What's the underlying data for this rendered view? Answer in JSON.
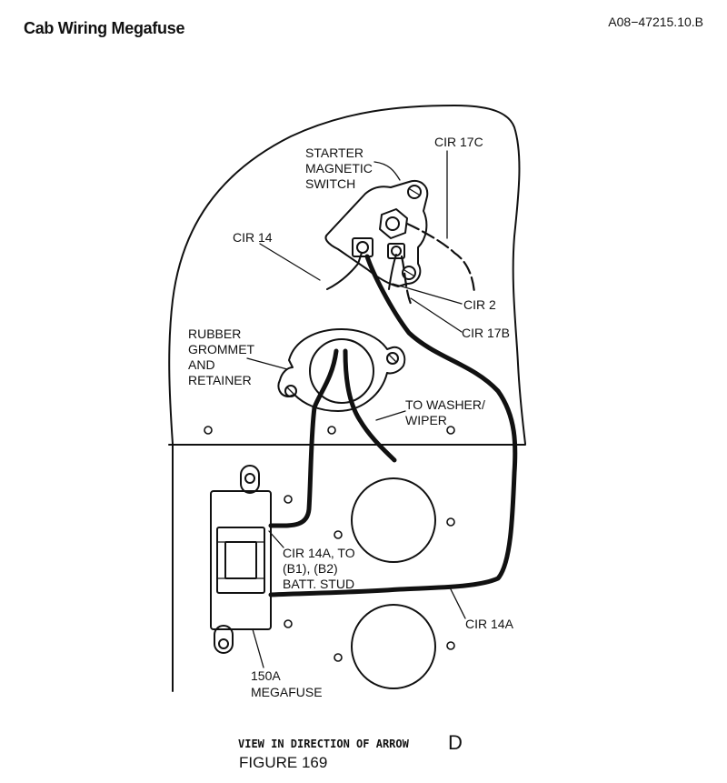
{
  "header": {
    "title": "Cab Wiring Megafuse",
    "doc_ref": "A08−47215.10.B"
  },
  "labels": {
    "starter_line1": "STARTER",
    "starter_line2": "MAGNETIC",
    "starter_line3": "SWITCH",
    "cir17c": "CIR 17C",
    "cir14": "CIR 14",
    "cir2": "CIR 2",
    "cir17b": "CIR 17B",
    "grommet_line1": "RUBBER",
    "grommet_line2": "GROMMET",
    "grommet_line3": "AND",
    "grommet_line4": "RETAINER",
    "washer_line1": "TO WASHER/",
    "washer_line2": "WIPER",
    "cir14a_line1": "CIR 14A, TO",
    "cir14a_line2": "(B1), (B2)",
    "cir14a_line3": "BATT. STUD",
    "cir14a_lower": "CIR 14A",
    "megafuse_line1": "150A",
    "megafuse_line2": "MEGAFUSE"
  },
  "footer": {
    "view_caption": "VIEW IN DIRECTION OF ARROW",
    "view_letter": "D",
    "figure_label": "FIGURE 169"
  }
}
